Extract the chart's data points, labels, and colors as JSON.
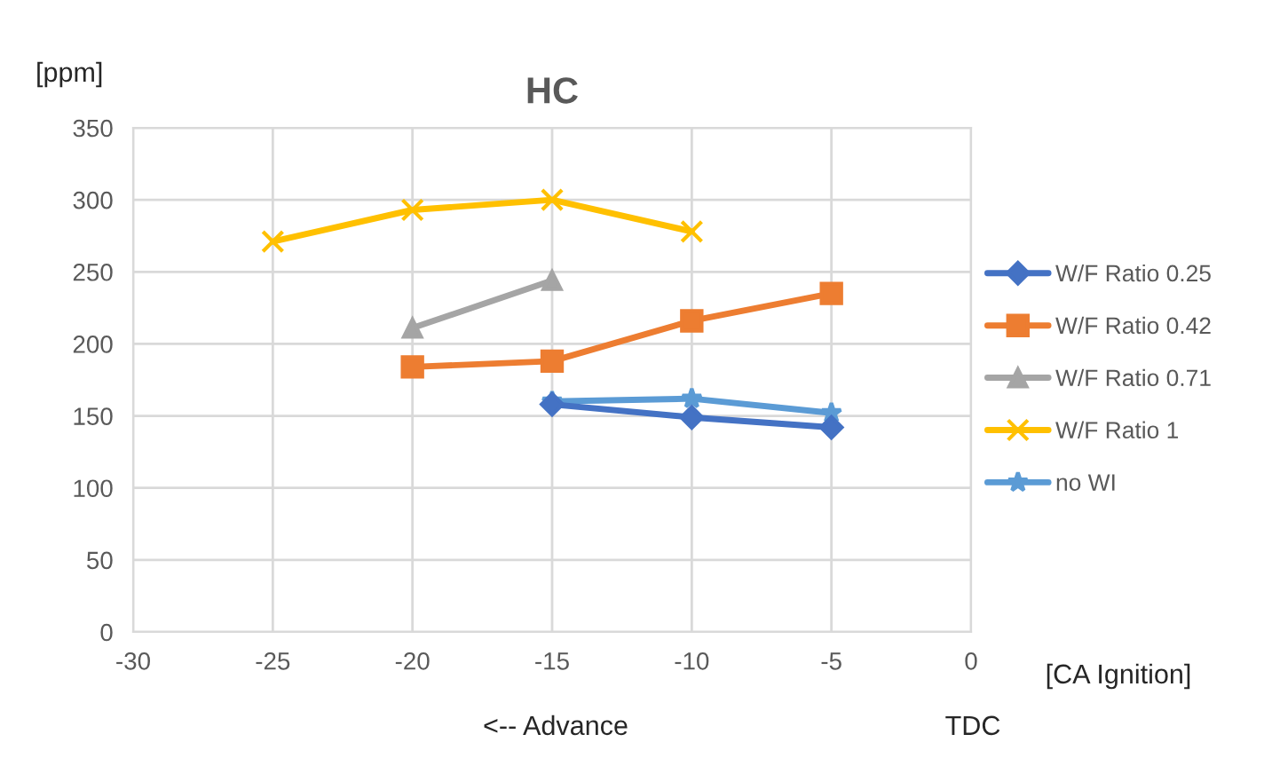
{
  "chart_data": {
    "type": "line",
    "title": "HC",
    "ylabel": "[ppm]",
    "xlabel": "[CA Ignition]",
    "annotations": [
      "<-- Advance",
      "TDC"
    ],
    "xlim": [
      -30,
      0
    ],
    "xticks": [
      -30,
      -25,
      -20,
      -15,
      -10,
      -5,
      0
    ],
    "ylim": [
      0,
      350
    ],
    "yticks": [
      0,
      50,
      100,
      150,
      200,
      250,
      300,
      350
    ],
    "grid": true,
    "legend": "right",
    "line_style": "solid",
    "series": [
      {
        "name": "W/F Ratio 0.25",
        "color": "#4472c4",
        "marker": "diamond",
        "x": [
          -15,
          -10,
          -5
        ],
        "values": [
          158,
          149,
          142
        ]
      },
      {
        "name": "W/F Ratio 0.42",
        "color": "#ed7d31",
        "marker": "square",
        "x": [
          -20,
          -15,
          -10,
          -5
        ],
        "values": [
          184,
          188,
          216,
          235
        ]
      },
      {
        "name": "W/F Ratio 0.71",
        "color": "#a5a5a5",
        "marker": "triangle",
        "x": [
          -20,
          -15
        ],
        "values": [
          211,
          244
        ]
      },
      {
        "name": "W/F Ratio 1",
        "color": "#ffc000",
        "marker": "cross",
        "x": [
          -25,
          -20,
          -15,
          -10
        ],
        "values": [
          271,
          293,
          300,
          278
        ]
      },
      {
        "name": "no WI",
        "color": "#5b9bd5",
        "marker": "star",
        "x": [
          -15,
          -10,
          -5
        ],
        "values": [
          160,
          162,
          152
        ]
      }
    ]
  }
}
